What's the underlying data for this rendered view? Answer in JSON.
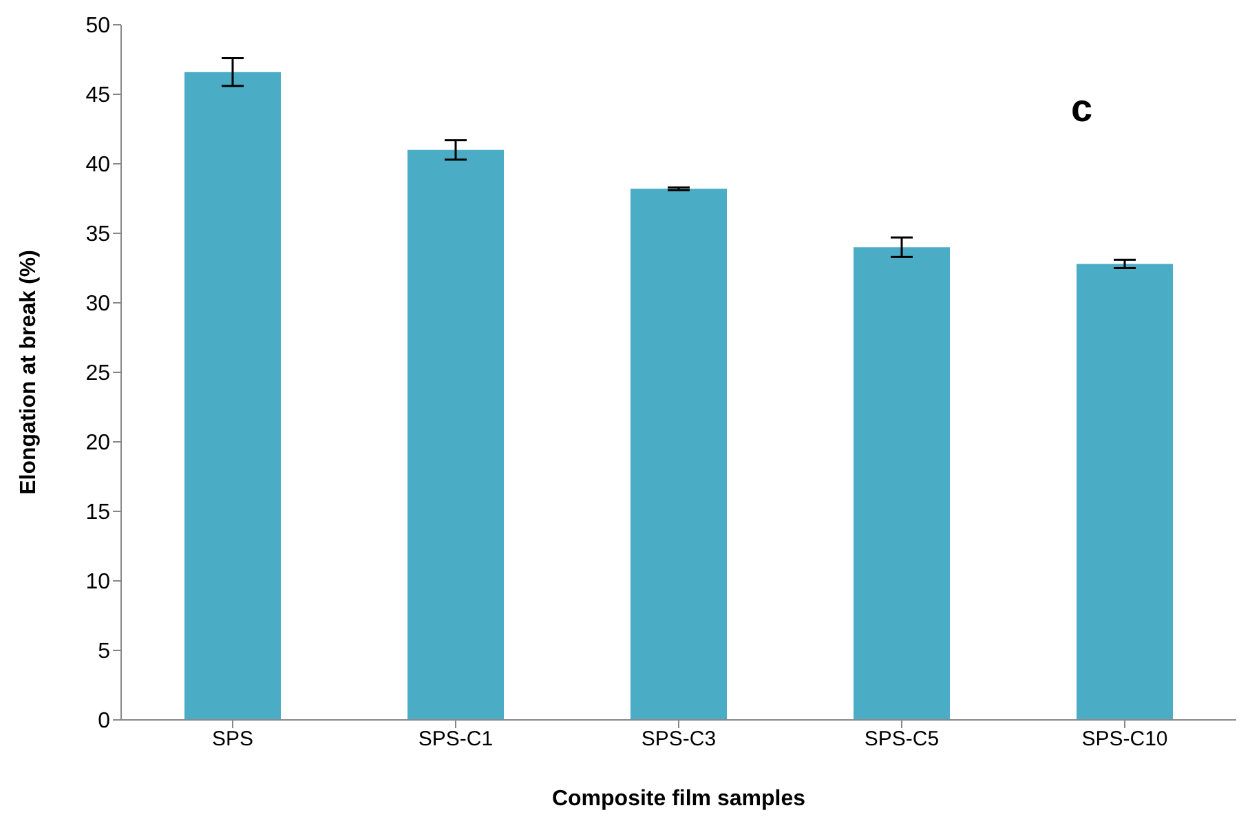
{
  "chart_data": {
    "type": "bar",
    "xlabel": "Composite film samples",
    "ylabel": "Elongation at break (%)",
    "categories": [
      "SPS",
      "SPS-C1",
      "SPS-C3",
      "SPS-C5",
      "SPS-C10"
    ],
    "values": [
      46.6,
      41.0,
      38.2,
      34.0,
      32.8
    ],
    "errors": [
      1.0,
      0.7,
      0.1,
      0.7,
      0.3
    ],
    "color": "#4bacc6",
    "ylim": [
      0,
      50
    ],
    "yticks": [
      0,
      5,
      10,
      15,
      20,
      25,
      30,
      35,
      40,
      45,
      50
    ],
    "grid": false,
    "legend": false,
    "annotations": [
      "c"
    ]
  }
}
